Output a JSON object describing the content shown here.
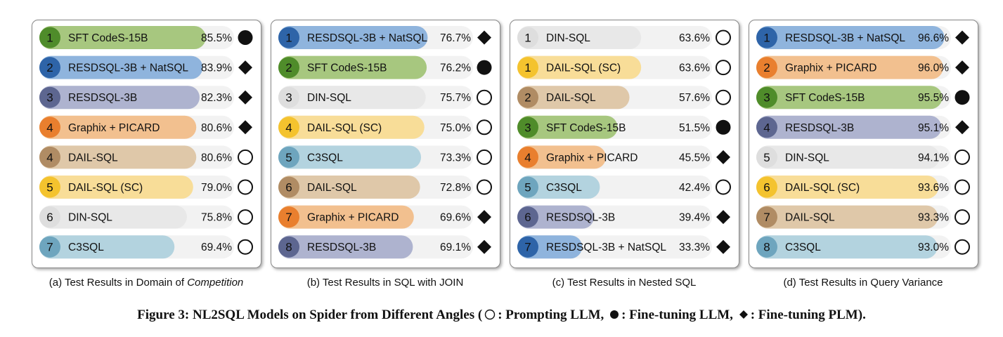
{
  "figure_title": {
    "main": "Figure 3: NL2SQL Models on Spider from Different Angles",
    "open_paren": "(",
    "legend_prompting": ": Prompting LLM,",
    "legend_finetune_llm": ": Fine-tuning LLM,",
    "legend_finetune_plm": ": Fine-tuning PLM).",
    "close_paren": ""
  },
  "marker_legend": {
    "circle": "Prompting LLM",
    "dot": "Fine-tuning LLM",
    "diamond": "Fine-tuning PLM"
  },
  "model_colors": {
    "SFT CodeS-15B": {
      "bar": "#a7c77f",
      "badge": "#4f8c2a"
    },
    "RESDSQL-3B + NatSQL": {
      "bar": "#8fb4dd",
      "badge": "#2e64a8"
    },
    "RESDSQL-3B": {
      "bar": "#aeb3cf",
      "badge": "#5d6690"
    },
    "Graphix + PICARD": {
      "bar": "#f2c08f",
      "badge": "#e97f2e"
    },
    "DAIL-SQL": {
      "bar": "#dfc8a9",
      "badge": "#b08c64"
    },
    "DAIL-SQL (SC)": {
      "bar": "#f8dd98",
      "badge": "#f4c32e"
    },
    "DIN-SQL": {
      "bar": "#e8e8e8",
      "badge": "#dedede"
    },
    "C3SQL": {
      "bar": "#b3d3df",
      "badge": "#6ea5be"
    }
  },
  "chart_data": [
    {
      "type": "bar",
      "caption": "(a) Test Results in Domain of",
      "caption_italic": "Competition",
      "xlim": [
        0,
        100
      ],
      "categories": [
        "SFT CodeS-15B",
        "RESDSQL-3B + NatSQL",
        "RESDSQL-3B",
        "Graphix + PICARD",
        "DAIL-SQL",
        "DAIL-SQL (SC)",
        "DIN-SQL",
        "C3SQL"
      ],
      "ranks": [
        "1",
        "2",
        "3",
        "4",
        "4",
        "5",
        "6",
        "7"
      ],
      "values": [
        85.5,
        83.9,
        82.3,
        80.6,
        80.6,
        79.0,
        75.8,
        69.4
      ],
      "labels": [
        "85.5%",
        "83.9%",
        "82.3%",
        "80.6%",
        "80.6%",
        "79.0%",
        "75.8%",
        "69.4%"
      ],
      "markers": [
        "dot",
        "diamond",
        "diamond",
        "diamond",
        "circle",
        "circle",
        "circle",
        "circle"
      ]
    },
    {
      "type": "bar",
      "caption": "(b) Test Results in SQL with JOIN",
      "caption_italic": "",
      "xlim": [
        0,
        100
      ],
      "categories": [
        "RESDSQL-3B + NatSQL",
        "SFT CodeS-15B",
        "DIN-SQL",
        "DAIL-SQL (SC)",
        "C3SQL",
        "DAIL-SQL",
        "Graphix + PICARD",
        "RESDSQL-3B"
      ],
      "ranks": [
        "1",
        "2",
        "3",
        "4",
        "5",
        "6",
        "7",
        "8"
      ],
      "values": [
        76.7,
        76.2,
        75.7,
        75.0,
        73.3,
        72.8,
        69.6,
        69.1
      ],
      "labels": [
        "76.7%",
        "76.2%",
        "75.7%",
        "75.0%",
        "73.3%",
        "72.8%",
        "69.6%",
        "69.1%"
      ],
      "markers": [
        "diamond",
        "dot",
        "circle",
        "circle",
        "circle",
        "circle",
        "diamond",
        "diamond"
      ]
    },
    {
      "type": "bar",
      "caption": "(c) Test Results in Nested SQL",
      "caption_italic": "",
      "xlim": [
        0,
        100
      ],
      "categories": [
        "DIN-SQL",
        "DAIL-SQL (SC)",
        "DAIL-SQL",
        "SFT CodeS-15B",
        "Graphix + PICARD",
        "C3SQL",
        "RESDSQL-3B",
        "RESDSQL-3B + NatSQL"
      ],
      "ranks": [
        "1",
        "1",
        "2",
        "3",
        "4",
        "5",
        "6",
        "7"
      ],
      "values": [
        63.6,
        63.6,
        57.6,
        51.5,
        45.5,
        42.4,
        39.4,
        33.3
      ],
      "labels": [
        "63.6%",
        "63.6%",
        "57.6%",
        "51.5%",
        "45.5%",
        "42.4%",
        "39.4%",
        "33.3%"
      ],
      "markers": [
        "circle",
        "circle",
        "circle",
        "dot",
        "diamond",
        "circle",
        "diamond",
        "diamond"
      ]
    },
    {
      "type": "bar",
      "caption": "(d) Test Results in Query Variance",
      "caption_italic": "",
      "xlim": [
        0,
        100
      ],
      "categories": [
        "RESDSQL-3B + NatSQL",
        "Graphix + PICARD",
        "SFT CodeS-15B",
        "RESDSQL-3B",
        "DIN-SQL",
        "DAIL-SQL (SC)",
        "DAIL-SQL",
        "C3SQL"
      ],
      "ranks": [
        "1",
        "2",
        "3",
        "4",
        "5",
        "6",
        "7",
        "8"
      ],
      "values": [
        96.6,
        96.0,
        95.5,
        95.1,
        94.1,
        93.6,
        93.3,
        93.0
      ],
      "labels": [
        "96.6%",
        "96.0%",
        "95.5%",
        "95.1%",
        "94.1%",
        "93.6%",
        "93.3%",
        "93.0%"
      ],
      "markers": [
        "diamond",
        "diamond",
        "dot",
        "diamond",
        "circle",
        "circle",
        "circle",
        "circle"
      ]
    }
  ]
}
